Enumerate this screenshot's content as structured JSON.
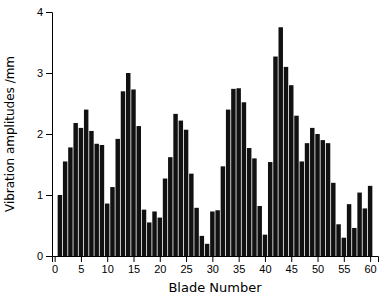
{
  "chart_data": {
    "type": "bar",
    "x": [
      1,
      2,
      3,
      4,
      5,
      6,
      7,
      8,
      9,
      10,
      11,
      12,
      13,
      14,
      15,
      16,
      17,
      18,
      19,
      20,
      21,
      22,
      23,
      24,
      25,
      26,
      27,
      28,
      29,
      30,
      31,
      32,
      33,
      34,
      35,
      36,
      37,
      38,
      39,
      40,
      41,
      42,
      43,
      44,
      45,
      46,
      47,
      48,
      49,
      50,
      51,
      52,
      53,
      54,
      55,
      56,
      57,
      58,
      59,
      60
    ],
    "values": [
      1.0,
      1.55,
      1.78,
      2.18,
      2.1,
      2.4,
      2.05,
      1.84,
      1.82,
      0.86,
      1.13,
      1.92,
      2.7,
      3.0,
      2.73,
      2.13,
      0.76,
      0.55,
      0.73,
      0.63,
      1.27,
      1.62,
      2.33,
      2.22,
      2.07,
      1.35,
      0.79,
      0.33,
      0.2,
      0.73,
      0.75,
      1.47,
      2.4,
      2.74,
      2.75,
      2.52,
      1.77,
      1.6,
      0.82,
      0.35,
      1.54,
      3.27,
      3.75,
      3.1,
      2.8,
      2.3,
      1.55,
      1.85,
      2.1,
      2.0,
      1.9,
      1.85,
      1.2,
      0.52,
      0.3,
      0.85,
      0.46,
      1.04,
      0.78,
      1.15
    ],
    "color": "#111111",
    "xlabel": "Blade Number",
    "ylabel": "Vibration amplitudes /mm",
    "xlim": [
      -0.5,
      61.5
    ],
    "ylim": [
      0,
      4
    ],
    "xticks": [
      0,
      5,
      10,
      15,
      20,
      25,
      30,
      35,
      40,
      45,
      50,
      55,
      60
    ],
    "yticks": [
      0,
      1,
      2,
      3,
      4
    ],
    "grid": false
  }
}
